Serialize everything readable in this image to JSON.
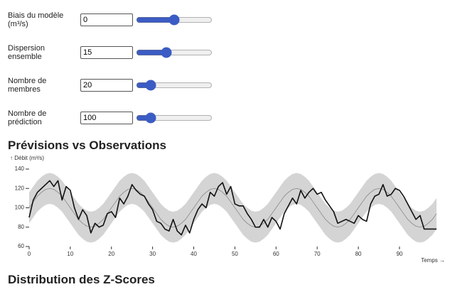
{
  "controls": [
    {
      "label": "Biais du modèle (m³/s)",
      "value": 0
    },
    {
      "label": "Dispersion ensemble",
      "value": 15
    },
    {
      "label": "Nombre de membres",
      "value": 20
    },
    {
      "label": "Nombre de prédiction",
      "value": 100
    }
  ],
  "chart_data": {
    "type": "line",
    "title": "Prévisions vs Observations",
    "y_label": "↑ Débit (m³/s)",
    "x_label": "Temps →",
    "x": [
      0,
      1,
      2,
      3,
      4,
      5,
      6,
      7,
      8,
      9,
      10,
      11,
      12,
      13,
      14,
      15,
      16,
      17,
      18,
      19,
      20,
      21,
      22,
      23,
      24,
      25,
      26,
      27,
      28,
      29,
      30,
      31,
      32,
      33,
      34,
      35,
      36,
      37,
      38,
      39,
      40,
      41,
      42,
      43,
      44,
      45,
      46,
      47,
      48,
      49,
      50,
      51,
      52,
      53,
      54,
      55,
      56,
      57,
      58,
      59,
      60,
      61,
      62,
      63,
      64,
      65,
      66,
      67,
      68,
      69,
      70,
      71,
      72,
      73,
      74,
      75,
      76,
      77,
      78,
      79,
      80,
      81,
      82,
      83,
      84,
      85,
      86,
      87,
      88,
      89,
      90,
      91,
      92,
      93,
      94,
      95,
      96,
      97,
      98,
      99
    ],
    "band": {
      "color": "#d4d4d4",
      "upper": [
        116,
        122,
        128,
        132,
        135,
        136,
        135,
        132,
        128,
        122,
        116,
        110,
        104,
        100,
        97,
        96,
        97,
        100,
        104,
        110,
        116,
        122,
        128,
        132,
        135,
        136,
        135,
        132,
        128,
        122,
        116,
        110,
        104,
        100,
        97,
        96,
        97,
        100,
        104,
        110,
        116,
        122,
        128,
        132,
        135,
        136,
        135,
        132,
        128,
        122,
        116,
        110,
        104,
        100,
        97,
        96,
        97,
        100,
        104,
        110,
        116,
        122,
        128,
        132,
        135,
        136,
        135,
        132,
        128,
        122,
        116,
        110,
        104,
        100,
        97,
        96,
        97,
        100,
        104,
        110,
        116,
        122,
        128,
        132,
        135,
        136,
        135,
        132,
        128,
        122,
        116,
        110,
        104,
        100,
        97,
        96,
        97,
        100,
        104,
        110
      ],
      "lower": [
        84,
        90,
        96,
        100,
        103,
        104,
        103,
        100,
        96,
        90,
        84,
        78,
        72,
        68,
        65,
        64,
        65,
        68,
        72,
        78,
        84,
        90,
        96,
        100,
        103,
        104,
        103,
        100,
        96,
        90,
        84,
        78,
        72,
        68,
        65,
        64,
        65,
        68,
        72,
        78,
        84,
        90,
        96,
        100,
        103,
        104,
        103,
        100,
        96,
        90,
        84,
        78,
        72,
        68,
        65,
        64,
        65,
        68,
        72,
        78,
        84,
        90,
        96,
        100,
        103,
        104,
        103,
        100,
        96,
        90,
        84,
        78,
        72,
        68,
        65,
        64,
        65,
        68,
        72,
        78,
        84,
        90,
        96,
        100,
        103,
        104,
        103,
        100,
        96,
        90,
        84,
        78,
        72,
        68,
        65,
        64,
        65,
        68,
        72,
        78
      ]
    },
    "series": [
      {
        "color": "#888888",
        "width": 0.8,
        "values": [
          100,
          106,
          112,
          116,
          119,
          120,
          119,
          116,
          112,
          106,
          100,
          94,
          88,
          84,
          81,
          80,
          81,
          84,
          88,
          94,
          100,
          106,
          112,
          116,
          119,
          120,
          119,
          116,
          112,
          106,
          100,
          94,
          88,
          84,
          81,
          80,
          81,
          84,
          88,
          94,
          100,
          106,
          112,
          116,
          119,
          120,
          119,
          116,
          112,
          106,
          100,
          94,
          88,
          84,
          81,
          80,
          81,
          84,
          88,
          94,
          100,
          106,
          112,
          116,
          119,
          120,
          119,
          116,
          112,
          106,
          100,
          94,
          88,
          84,
          81,
          80,
          81,
          84,
          88,
          94,
          100,
          106,
          112,
          116,
          119,
          120,
          119,
          116,
          112,
          106,
          100,
          94,
          88,
          84,
          81,
          80,
          81,
          84,
          88,
          94
        ]
      },
      {
        "color": "#111111",
        "width": 1.6,
        "values": [
          90,
          108,
          116,
          120,
          124,
          128,
          122,
          128,
          108,
          122,
          118,
          100,
          88,
          98,
          92,
          74,
          84,
          80,
          82,
          94,
          96,
          90,
          110,
          104,
          112,
          124,
          118,
          114,
          112,
          104,
          98,
          86,
          84,
          78,
          76,
          88,
          76,
          72,
          82,
          74,
          88,
          98,
          104,
          100,
          116,
          112,
          122,
          126,
          114,
          122,
          104,
          102,
          102,
          94,
          88,
          80,
          80,
          88,
          80,
          90,
          86,
          78,
          94,
          102,
          110,
          104,
          118,
          110,
          116,
          120,
          114,
          116,
          108,
          102,
          96,
          84,
          86,
          88,
          86,
          84,
          92,
          88,
          86,
          104,
          112,
          114,
          124,
          112,
          114,
          120,
          118,
          112,
          104,
          96,
          88,
          92,
          78,
          78,
          78,
          78
        ]
      }
    ],
    "xlim": [
      0,
      99
    ],
    "ylim": [
      60,
      140
    ],
    "xticks": [
      0,
      10,
      20,
      30,
      40,
      50,
      60,
      70,
      80,
      90
    ],
    "yticks": [
      60,
      80,
      100,
      120,
      140
    ]
  },
  "next_heading": "Distribution des Z-Scores"
}
